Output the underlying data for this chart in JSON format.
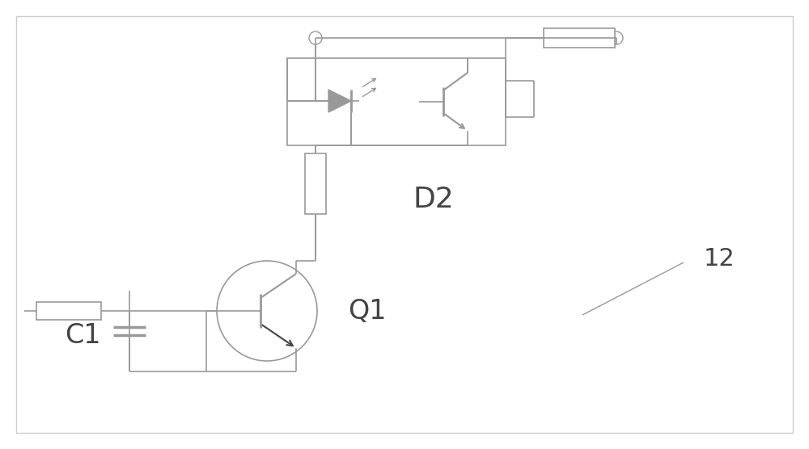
{
  "bg_color": "#ffffff",
  "border_color": "#bbbbbb",
  "line_color": "#999999",
  "component_color": "#999999",
  "text_color": "#444444",
  "fig_width": 10.0,
  "fig_height": 5.56,
  "dpi": 100,
  "label_D2": "D2",
  "label_Q1": "Q1",
  "label_C1": "C1",
  "label_12": "12",
  "lw_main": 1.2,
  "lw_component": 1.2
}
